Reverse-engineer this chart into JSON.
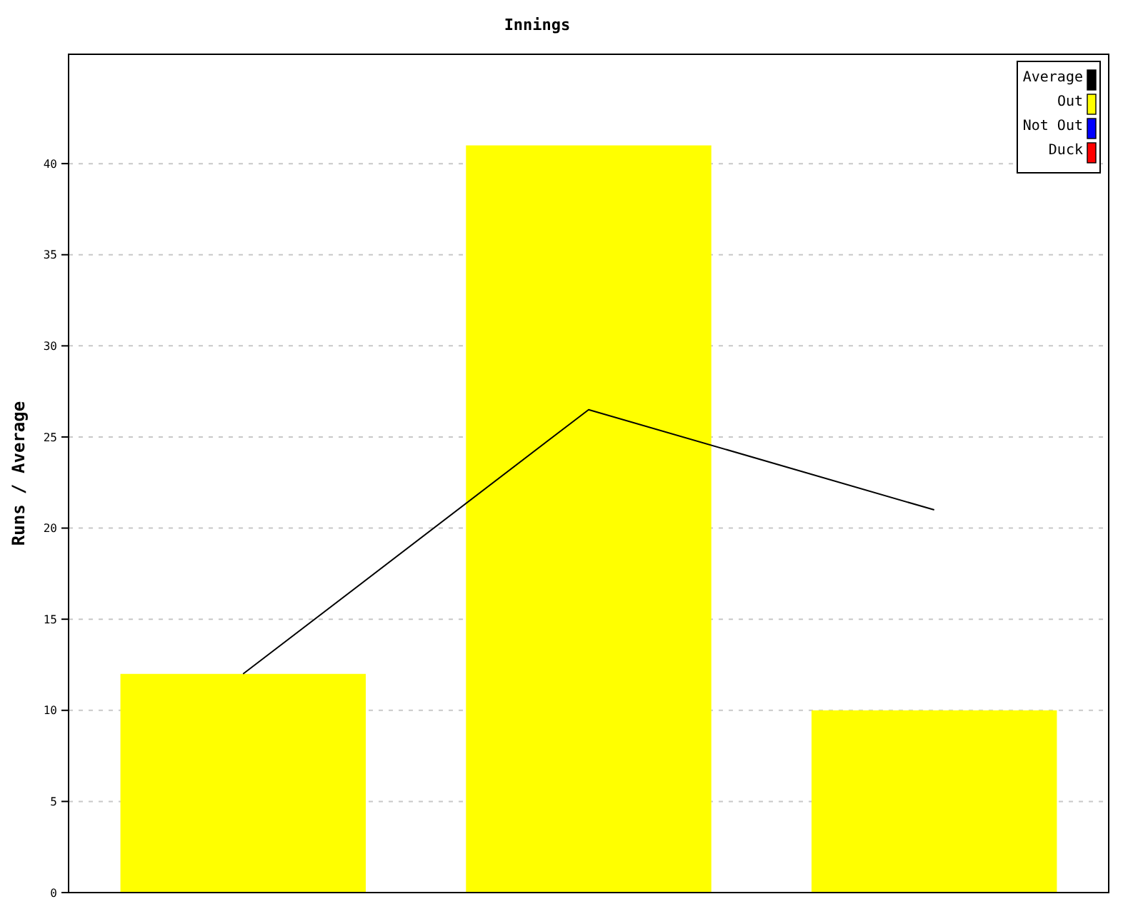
{
  "chart_data": {
    "type": "bar",
    "title": "Innings",
    "ylabel": "Runs / Average",
    "categories": [
      null,
      null,
      null
    ],
    "series": [
      {
        "name": "Average",
        "type": "line",
        "color": "#000000",
        "values": [
          12,
          26.5,
          21
        ]
      },
      {
        "name": "Out",
        "color": "#ffff00",
        "values": [
          12,
          41,
          10
        ]
      },
      {
        "name": "Not Out",
        "color": "#0000ff",
        "values": [
          null,
          null,
          null
        ]
      },
      {
        "name": "Duck",
        "color": "#ff0000",
        "values": [
          null,
          null,
          null
        ]
      }
    ],
    "stacked": true,
    "ylim": [
      0,
      46
    ],
    "yticks": [
      0,
      5,
      10,
      15,
      20,
      25,
      30,
      35,
      40
    ],
    "grid": "y",
    "legend": "top right",
    "marker": "none"
  }
}
